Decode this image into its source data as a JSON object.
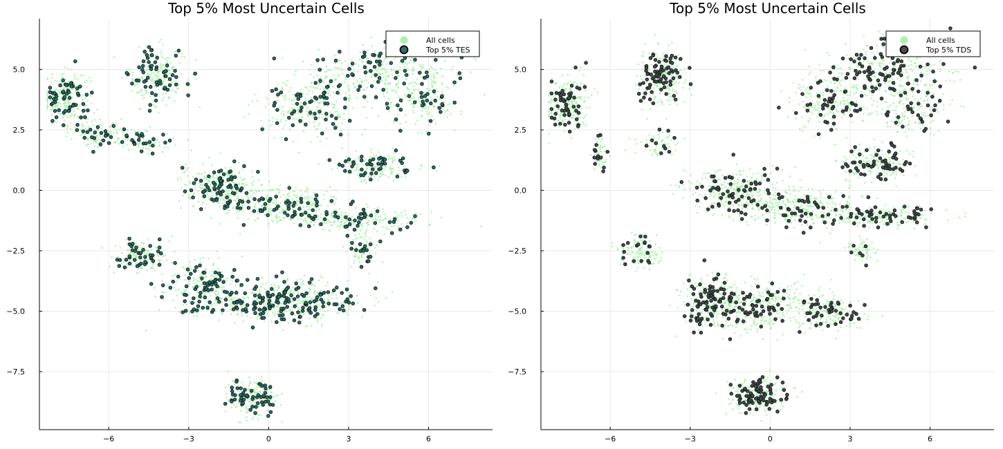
{
  "chart_data": [
    {
      "type": "scatter",
      "title": "Top 5% Most Uncertain Cells",
      "xlabel": "",
      "ylabel": "",
      "xlim": [
        -8.6,
        8.4
      ],
      "ylim": [
        -9.9,
        7.1
      ],
      "xticks": [
        -6,
        -3,
        0,
        3,
        6
      ],
      "yticks": [
        -7.5,
        -5.0,
        -2.5,
        0.0,
        2.5,
        5.0
      ],
      "xtick_labels": [
        "−6",
        "−3",
        "0",
        "3",
        "6"
      ],
      "ytick_labels": [
        "−7.5",
        "−5.0",
        "−2.5",
        "0.0",
        "2.5",
        "5.0"
      ],
      "grid": true,
      "legend_position": "top-right",
      "series": [
        {
          "name": "All cells",
          "color": "#90ee90",
          "marker": "small-dot"
        },
        {
          "name": "Top 5% TES",
          "color": "#2e6f66",
          "marker": "circle-dark-outline"
        }
      ],
      "clusters": [
        {
          "cx": -7.6,
          "cy": 3.8,
          "sx": 0.45,
          "sy": 0.55,
          "n_all": 220,
          "n_top": 55
        },
        {
          "cx": -6.3,
          "cy": 2.3,
          "sx": 0.45,
          "sy": 0.3,
          "n_all": 80,
          "n_top": 22
        },
        {
          "cx": -4.7,
          "cy": 2.1,
          "sx": 0.6,
          "sy": 0.25,
          "n_all": 70,
          "n_top": 22
        },
        {
          "cx": -4.2,
          "cy": 4.7,
          "sx": 0.55,
          "sy": 0.6,
          "n_all": 200,
          "n_top": 60
        },
        {
          "cx": -1.8,
          "cy": 0.1,
          "sx": 0.75,
          "sy": 0.45,
          "n_all": 240,
          "n_top": 70
        },
        {
          "cx": 0.5,
          "cy": -0.6,
          "sx": 1.2,
          "sy": 0.4,
          "n_all": 260,
          "n_top": 55
        },
        {
          "cx": 3.3,
          "cy": -1.2,
          "sx": 1.3,
          "sy": 0.22,
          "n_all": 200,
          "n_top": 40
        },
        {
          "cx": 1.5,
          "cy": 3.5,
          "sx": 0.9,
          "sy": 0.6,
          "n_all": 230,
          "n_top": 55
        },
        {
          "cx": 4.4,
          "cy": 4.8,
          "sx": 1.3,
          "sy": 0.65,
          "n_all": 280,
          "n_top": 70
        },
        {
          "cx": 5.8,
          "cy": 3.6,
          "sx": 0.7,
          "sy": 0.5,
          "n_all": 120,
          "n_top": 25
        },
        {
          "cx": 4.0,
          "cy": 1.0,
          "sx": 0.7,
          "sy": 0.3,
          "n_all": 150,
          "n_top": 45
        },
        {
          "cx": -4.8,
          "cy": -2.7,
          "sx": 0.5,
          "sy": 0.35,
          "n_all": 140,
          "n_top": 40
        },
        {
          "cx": -2.4,
          "cy": -4.1,
          "sx": 0.7,
          "sy": 0.55,
          "n_all": 200,
          "n_top": 75
        },
        {
          "cx": 0.6,
          "cy": -4.6,
          "sx": 1.4,
          "sy": 0.45,
          "n_all": 360,
          "n_top": 150
        },
        {
          "cx": 3.5,
          "cy": -2.4,
          "sx": 0.3,
          "sy": 0.3,
          "n_all": 60,
          "n_top": 18
        },
        {
          "cx": -0.7,
          "cy": -8.5,
          "sx": 0.5,
          "sy": 0.35,
          "n_all": 180,
          "n_top": 55
        }
      ]
    },
    {
      "type": "scatter",
      "title": "Top 5% Most Uncertain Cells",
      "xlabel": "",
      "ylabel": "",
      "xlim": [
        -8.6,
        8.4
      ],
      "ylim": [
        -9.9,
        7.1
      ],
      "xticks": [
        -6,
        -3,
        0,
        3,
        6
      ],
      "yticks": [
        -7.5,
        -5.0,
        -2.5,
        0.0,
        2.5,
        5.0
      ],
      "xtick_labels": [
        "−6",
        "−3",
        "0",
        "3",
        "6"
      ],
      "ytick_labels": [
        "−7.5",
        "−5.0",
        "−2.5",
        "0.0",
        "2.5",
        "5.0"
      ],
      "grid": true,
      "legend_position": "top-right",
      "series": [
        {
          "name": "All cells",
          "color": "#90ee90",
          "marker": "small-dot"
        },
        {
          "name": "Top 5% TDS",
          "color": "#4a4a4a",
          "marker": "circle-dark-outline"
        }
      ],
      "clusters": [
        {
          "cx": -7.6,
          "cy": 3.6,
          "sx": 0.4,
          "sy": 0.55,
          "n_all": 220,
          "n_top": 55
        },
        {
          "cx": -6.4,
          "cy": 1.5,
          "sx": 0.15,
          "sy": 0.4,
          "n_all": 50,
          "n_top": 14
        },
        {
          "cx": -4.2,
          "cy": 1.9,
          "sx": 0.4,
          "sy": 0.25,
          "n_all": 60,
          "n_top": 10
        },
        {
          "cx": -4.1,
          "cy": 4.7,
          "sx": 0.45,
          "sy": 0.55,
          "n_all": 200,
          "n_top": 80
        },
        {
          "cx": -1.5,
          "cy": 0.0,
          "sx": 0.9,
          "sy": 0.45,
          "n_all": 260,
          "n_top": 55
        },
        {
          "cx": 1.0,
          "cy": -0.7,
          "sx": 1.3,
          "sy": 0.4,
          "n_all": 280,
          "n_top": 55
        },
        {
          "cx": 4.0,
          "cy": -1.1,
          "sx": 1.2,
          "sy": 0.2,
          "n_all": 200,
          "n_top": 50
        },
        {
          "cx": 2.2,
          "cy": 3.6,
          "sx": 0.8,
          "sy": 0.55,
          "n_all": 200,
          "n_top": 45
        },
        {
          "cx": 4.4,
          "cy": 4.9,
          "sx": 1.2,
          "sy": 0.6,
          "n_all": 280,
          "n_top": 90
        },
        {
          "cx": 5.2,
          "cy": 3.3,
          "sx": 0.7,
          "sy": 0.45,
          "n_all": 120,
          "n_top": 30
        },
        {
          "cx": 4.0,
          "cy": 1.1,
          "sx": 0.65,
          "sy": 0.35,
          "n_all": 150,
          "n_top": 55
        },
        {
          "cx": -4.9,
          "cy": -2.6,
          "sx": 0.4,
          "sy": 0.3,
          "n_all": 120,
          "n_top": 18
        },
        {
          "cx": 3.4,
          "cy": -2.5,
          "sx": 0.25,
          "sy": 0.25,
          "n_all": 60,
          "n_top": 6
        },
        {
          "cx": -2.2,
          "cy": -4.6,
          "sx": 0.6,
          "sy": 0.6,
          "n_all": 200,
          "n_top": 85
        },
        {
          "cx": -0.3,
          "cy": -4.8,
          "sx": 1.0,
          "sy": 0.5,
          "n_all": 300,
          "n_top": 60
        },
        {
          "cx": 2.2,
          "cy": -5.1,
          "sx": 0.6,
          "sy": 0.35,
          "n_all": 140,
          "n_top": 40
        },
        {
          "cx": -0.5,
          "cy": -8.5,
          "sx": 0.5,
          "sy": 0.35,
          "n_all": 180,
          "n_top": 80
        }
      ]
    }
  ]
}
